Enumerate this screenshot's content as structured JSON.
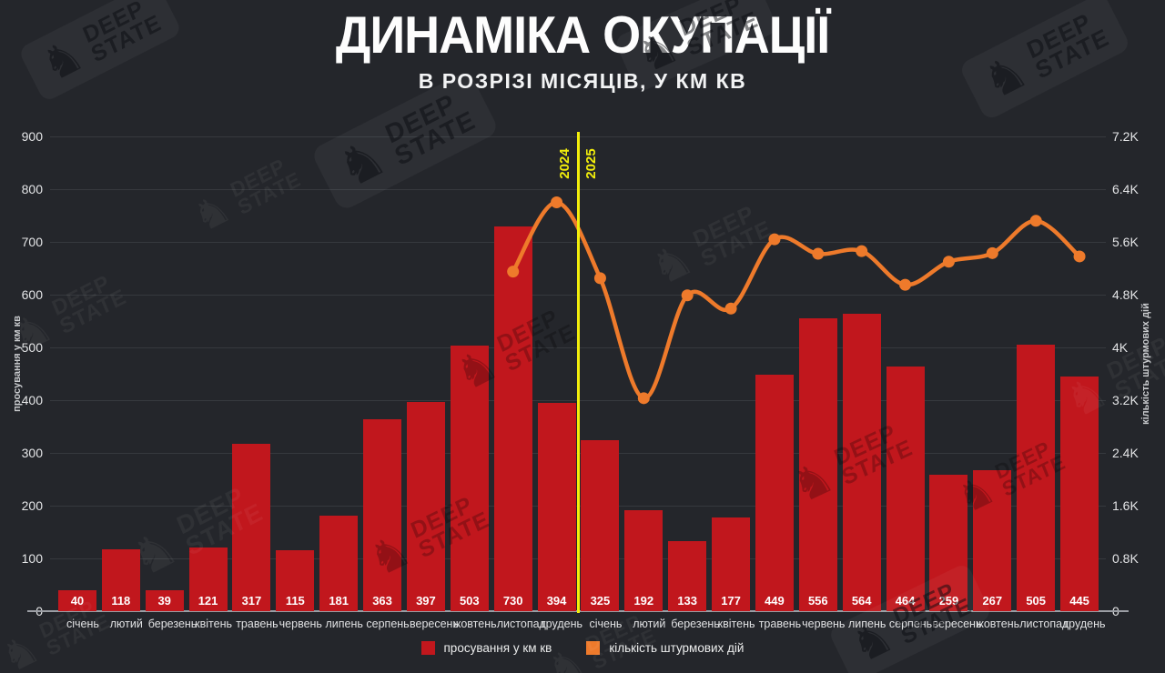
{
  "page": {
    "title": "ДИНАМІКА ОКУПАЦІЇ",
    "subtitle": "В РОЗРІЗІ МІСЯЦІВ, У КМ КВ"
  },
  "watermark": {
    "line1": "DEEP",
    "line2": "STATE",
    "icon": "knight-chess-icon"
  },
  "colors": {
    "background": "#24262b",
    "bar_red": "#c1171d",
    "line_orange": "#ee7a2b",
    "separator_yellow": "#f2ee0b",
    "grid": "#36393e",
    "axis_baseline": "#9b9ea4",
    "text_light": "#e3e4e6",
    "value_label": "#ffffff"
  },
  "chart_data": {
    "type": "bar+line",
    "title": "ДИНАМІКА ОКУПАЦІЇ",
    "subtitle": "В РОЗРІЗІ МІСЯЦІВ, У КМ КВ",
    "categories": [
      "січень",
      "лютий",
      "березень",
      "квітень",
      "травень",
      "червень",
      "липень",
      "серпень",
      "вересень",
      "жовтень",
      "листопад",
      "грудень",
      "січень",
      "лютий",
      "березень",
      "квітень",
      "травень",
      "червень",
      "липень",
      "серпень",
      "вересень",
      "жовтень",
      "листопад",
      "грудень"
    ],
    "series": [
      {
        "name": "просування у км кв",
        "type": "bar",
        "axis": "left",
        "color": "#c1171d",
        "values": [
          40,
          118,
          39,
          121,
          317,
          115,
          181,
          363,
          397,
          503,
          730,
          394,
          325,
          192,
          133,
          177,
          449,
          556,
          564,
          464,
          259,
          267,
          505,
          445
        ]
      },
      {
        "name": "кількість штурмових дій",
        "type": "line",
        "axis": "right",
        "color": "#ee7a2b",
        "values": [
          null,
          null,
          null,
          null,
          null,
          null,
          null,
          null,
          null,
          null,
          5150,
          6200,
          5050,
          3230,
          4790,
          4590,
          5640,
          5420,
          5460,
          4950,
          5300,
          5430,
          5920,
          5380
        ]
      }
    ],
    "left_axis": {
      "label": "просування у км кв",
      "min": 0,
      "max": 900,
      "tick_step": 100
    },
    "right_axis": {
      "label": "кількість штурмових дій",
      "min": 0,
      "max": 7200,
      "tick_step": 800,
      "tick_labels": [
        "0",
        "0.8K",
        "1.6K",
        "2.4K",
        "3.2K",
        "4K",
        "4.8K",
        "5.6K",
        "6.4K",
        "7.2K"
      ]
    },
    "year_separator": {
      "after_category_index": 11,
      "label_left": "2024",
      "label_right": "2025",
      "color": "#f2ee0b"
    },
    "grid": true,
    "legend_position": "bottom"
  },
  "legend": {
    "items": [
      {
        "label": "просування у км кв",
        "color": "#c1171d"
      },
      {
        "label": "кількість штурмових дій",
        "color": "#ee7a2b"
      }
    ]
  }
}
